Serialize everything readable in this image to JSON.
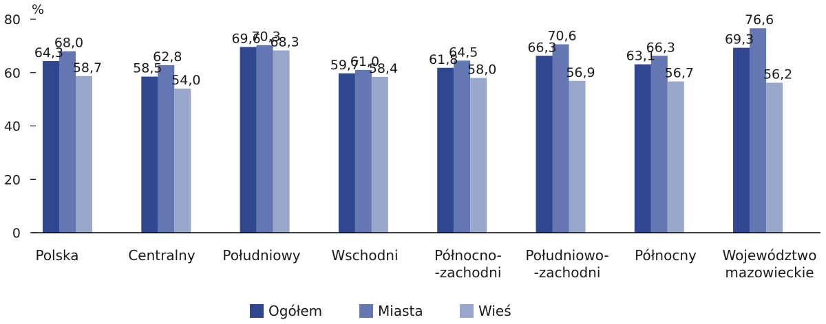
{
  "chart_data": {
    "type": "bar",
    "unit_label": "%",
    "ylim": [
      0,
      80
    ],
    "yticks": [
      "0",
      "20",
      "40",
      "60",
      "80"
    ],
    "grid": false,
    "legend_position": "bottom",
    "categories": [
      [
        "Polska"
      ],
      [
        "Centralny"
      ],
      [
        "Południowy"
      ],
      [
        "Wschodni"
      ],
      [
        "Północno-",
        "-zachodni"
      ],
      [
        "Południowo-",
        "-zachodni"
      ],
      [
        "Północny"
      ],
      [
        "Województwo",
        "mazowieckie"
      ]
    ],
    "series": [
      {
        "name": "Ogółem",
        "color": "#2f4690",
        "values": [
          64.3,
          58.5,
          69.6,
          59.7,
          61.8,
          66.3,
          63.1,
          69.3
        ],
        "labels": [
          "64,3",
          "58,5",
          "69,6",
          "59,7",
          "61,8",
          "66,3",
          "63,1",
          "69,3"
        ]
      },
      {
        "name": "Miasta",
        "color": "#6577b3",
        "values": [
          68.0,
          62.8,
          70.3,
          61.0,
          64.5,
          70.6,
          66.3,
          76.6
        ],
        "labels": [
          "68,0",
          "62,8",
          "70,3",
          "61,0",
          "64,5",
          "70,6",
          "66,3",
          "76,6"
        ]
      },
      {
        "name": "Wieś",
        "color": "#9aa7cc",
        "values": [
          58.7,
          54.0,
          68.3,
          58.4,
          58.0,
          56.9,
          56.7,
          56.2
        ],
        "labels": [
          "58,7",
          "54,0",
          "68,3",
          "58,4",
          "58,0",
          "56,9",
          "56,7",
          "56,2"
        ]
      }
    ]
  }
}
